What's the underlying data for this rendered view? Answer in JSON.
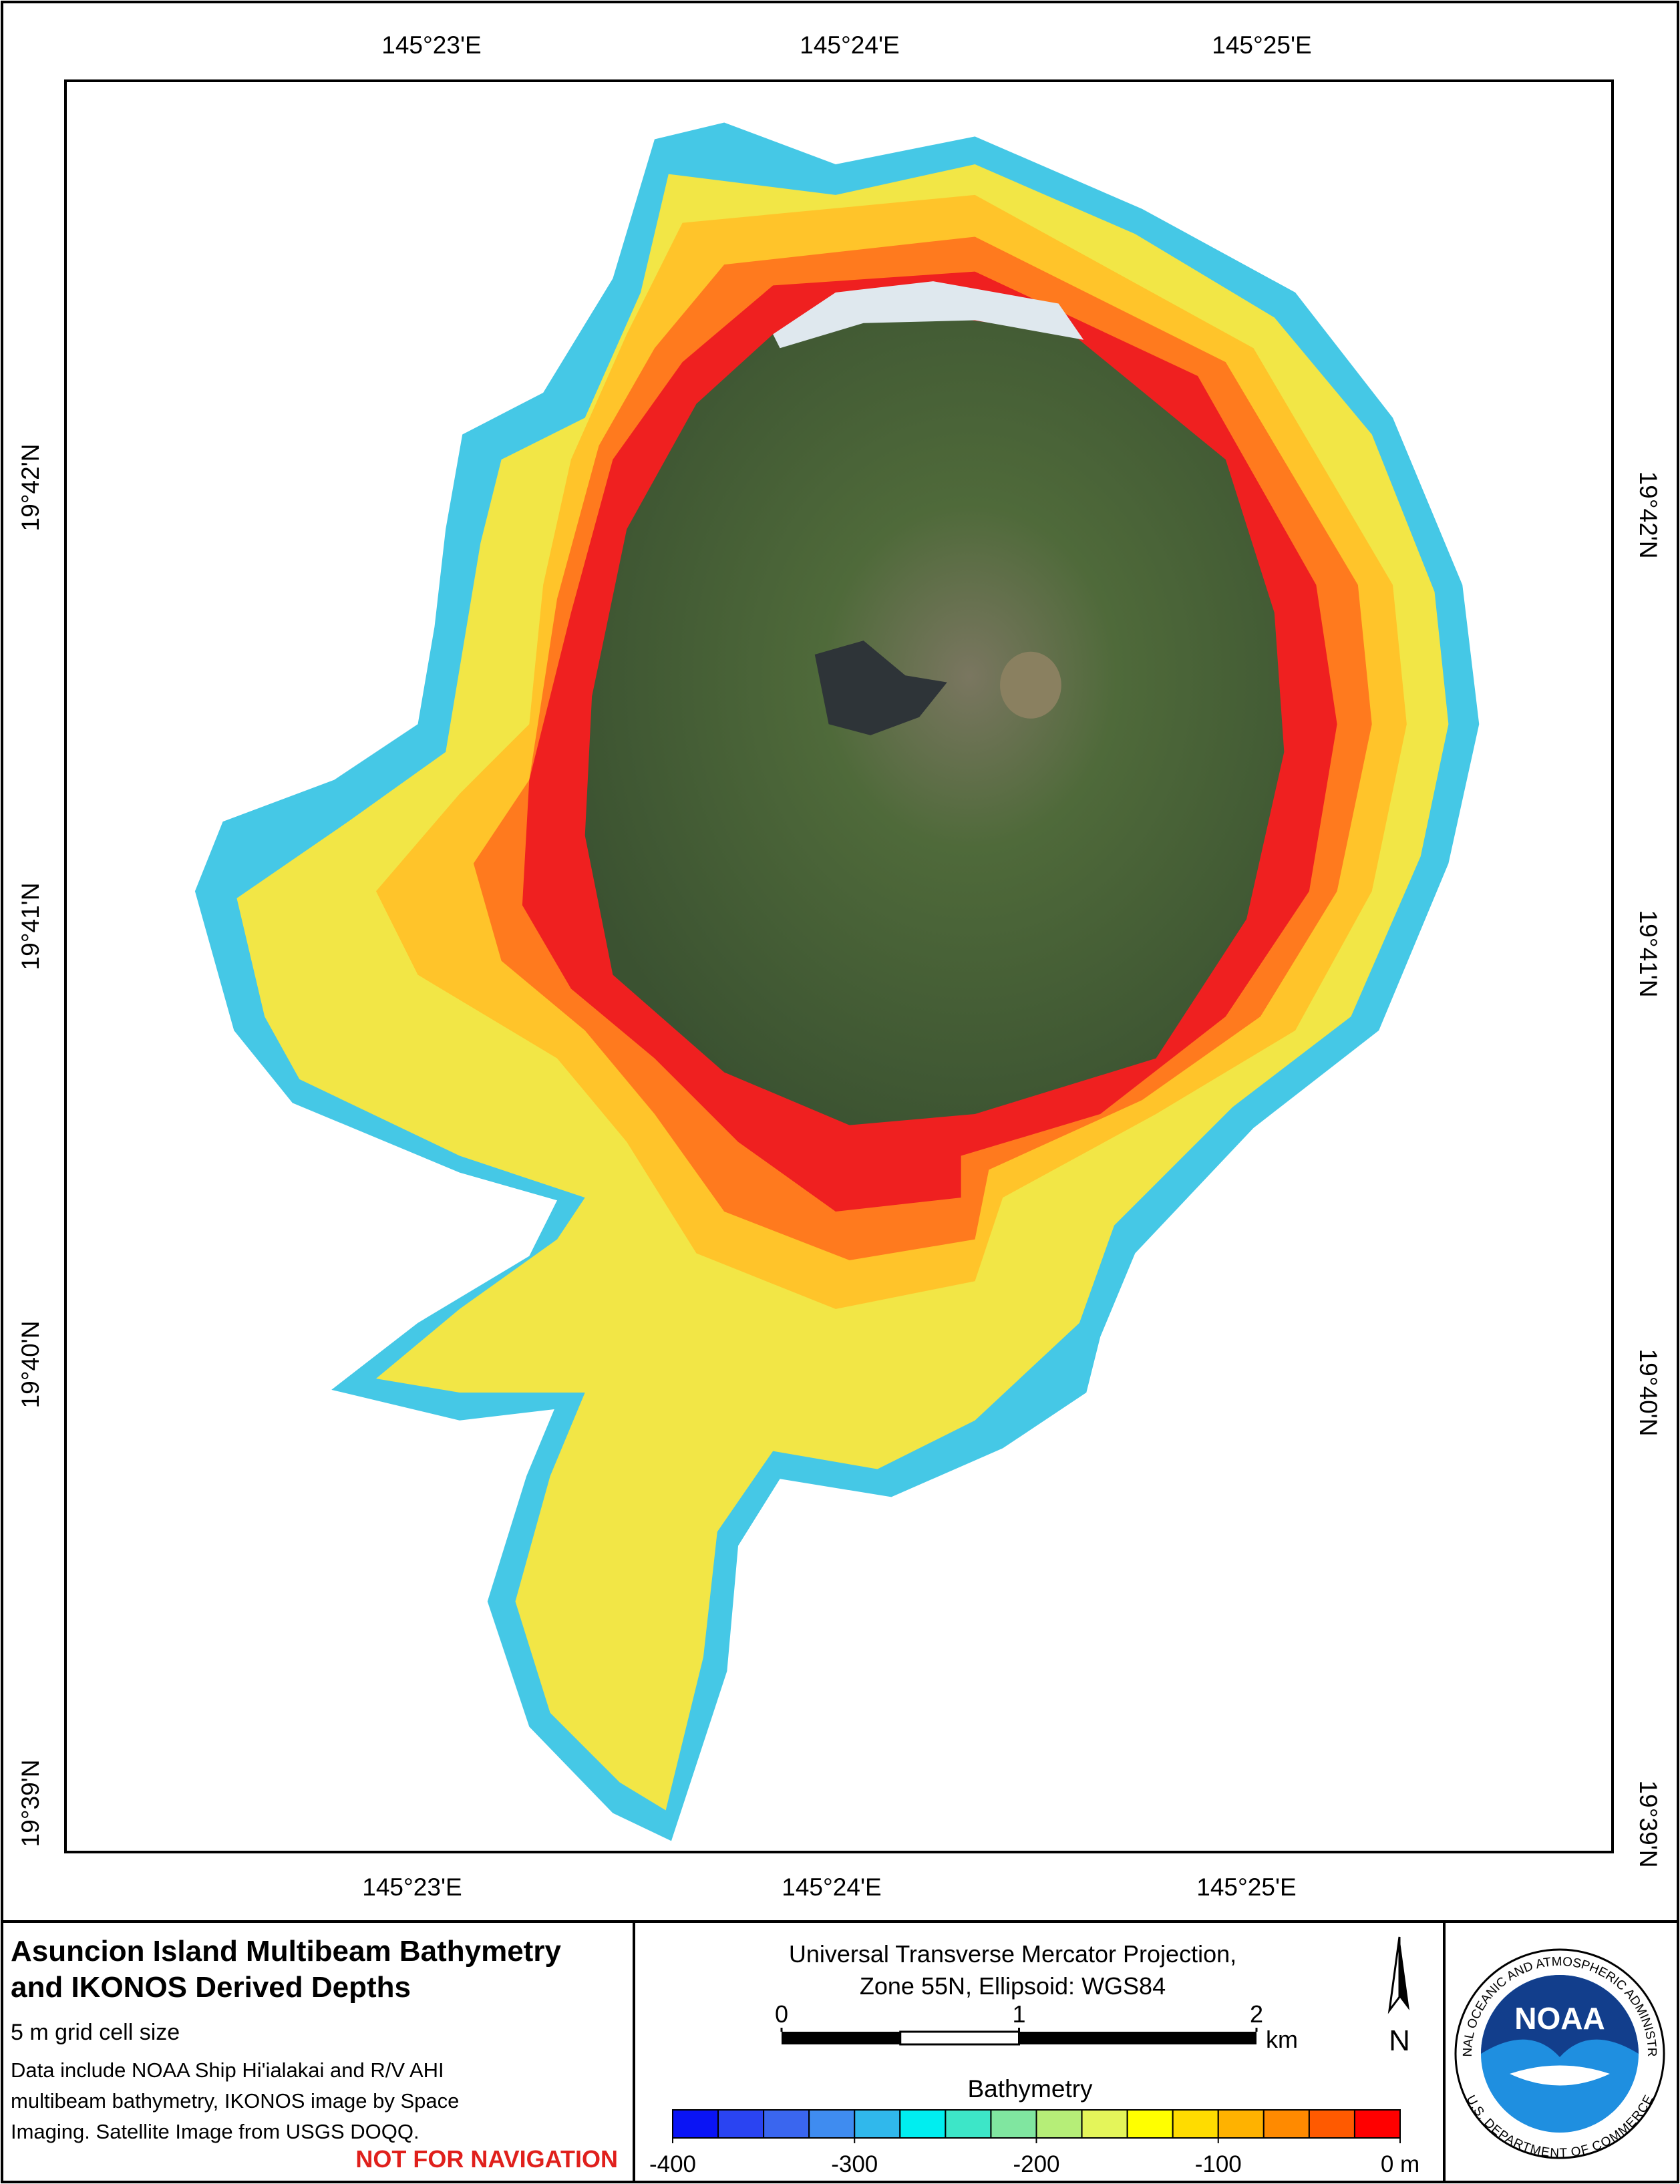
{
  "map": {
    "top_labels": [
      "145°23'E",
      "145°24'E",
      "145°25'E"
    ],
    "bottom_labels": [
      "145°23'E",
      "145°24'E",
      "145°25'E"
    ],
    "left_labels": [
      "19°42'N",
      "19°41'N",
      "19°40'N",
      "19°39'N"
    ],
    "right_labels": [
      "19°42'N",
      "19°41'N",
      "19°40'N",
      "19°39'N"
    ]
  },
  "title_panel": {
    "title_lines": [
      "Asuncion Island Multibeam Bathymetry",
      "and IKONOS Derived Depths"
    ],
    "subtitle": "5 m grid cell size",
    "notes": [
      "Data include NOAA Ship Hi'ialakai and R/V AHI",
      "multibeam bathymetry, IKONOS image by Space",
      "Imaging. Satellite Image from USGS DOQQ."
    ],
    "warning": "NOT FOR NAVIGATION"
  },
  "projection": {
    "lines": [
      "Universal Transverse Mercator Projection,",
      "Zone 55N, Ellipsoid: WGS84"
    ]
  },
  "scale_bar": {
    "ticks": [
      0,
      1,
      2
    ],
    "unit": "km"
  },
  "north_arrow": {
    "label": "N"
  },
  "legend": {
    "title": "Bathymetry",
    "colors": [
      "#0a14f5",
      "#2a44f2",
      "#3a66ef",
      "#3f8cf0",
      "#30b8ec",
      "#00eef0",
      "#3de6c8",
      "#80e6a0",
      "#b6ee78",
      "#e4f55a",
      "#ffff00",
      "#ffdc00",
      "#ffb200",
      "#ff8a00",
      "#ff5a00",
      "#ff0000"
    ],
    "ticks": [
      -400,
      -300,
      -200,
      -100,
      {
        "value": 0,
        "label": "0 m"
      }
    ]
  },
  "logo": {
    "name": "NOAA",
    "ring_top": "NATIONAL OCEANIC AND ATMOSPHERIC ADMINISTRATION",
    "ring_bottom": "U.S. DEPARTMENT OF COMMERCE"
  }
}
